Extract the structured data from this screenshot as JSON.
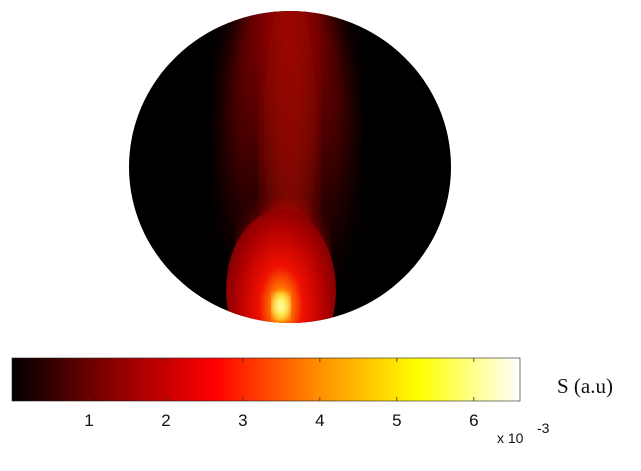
{
  "chart_data": {
    "type": "heatmap",
    "colormap": "hot",
    "colormap_stops": [
      "#000000",
      "#8b0000",
      "#ff0000",
      "#ff8c00",
      "#ffff00",
      "#ffffff"
    ],
    "colorbar": {
      "label": "S (a.u)",
      "range": [
        0,
        6.6
      ],
      "ticks": [
        1,
        2,
        3,
        4,
        5,
        6
      ],
      "tick_labels": [
        "1",
        "2",
        "3",
        "4",
        "5",
        "6"
      ],
      "multiplier_base": "x 10",
      "multiplier_exponent": "-3"
    },
    "image": {
      "shape": "circle",
      "description_values": {
        "background_level": 0,
        "peak_level": 6.6,
        "hotspot_location": "bottom-center"
      }
    }
  }
}
